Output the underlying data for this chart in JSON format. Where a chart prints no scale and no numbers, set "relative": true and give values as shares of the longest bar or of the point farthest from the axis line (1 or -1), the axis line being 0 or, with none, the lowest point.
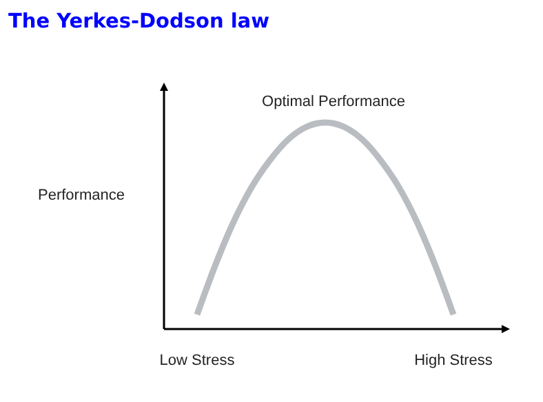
{
  "chart_data": {
    "type": "line",
    "title": "The Yerkes-Dodson law",
    "ylabel": "Performance",
    "relative": true,
    "categories": [
      "Low Stress",
      null,
      null,
      null,
      null,
      null,
      null,
      null,
      null,
      null,
      null,
      null,
      null,
      null,
      "High Stress"
    ],
    "series": [
      {
        "color": "#b9bdc1",
        "values": [
          0.07,
          0.31,
          0.52,
          0.69,
          0.82,
          0.92,
          0.98,
          1,
          0.98,
          0.92,
          0.82,
          0.69,
          0.52,
          0.31,
          0.07
        ]
      }
    ],
    "annotations": [
      "Optimal Performance"
    ],
    "grid": false,
    "marker": "none",
    "line_style": "solid"
  }
}
